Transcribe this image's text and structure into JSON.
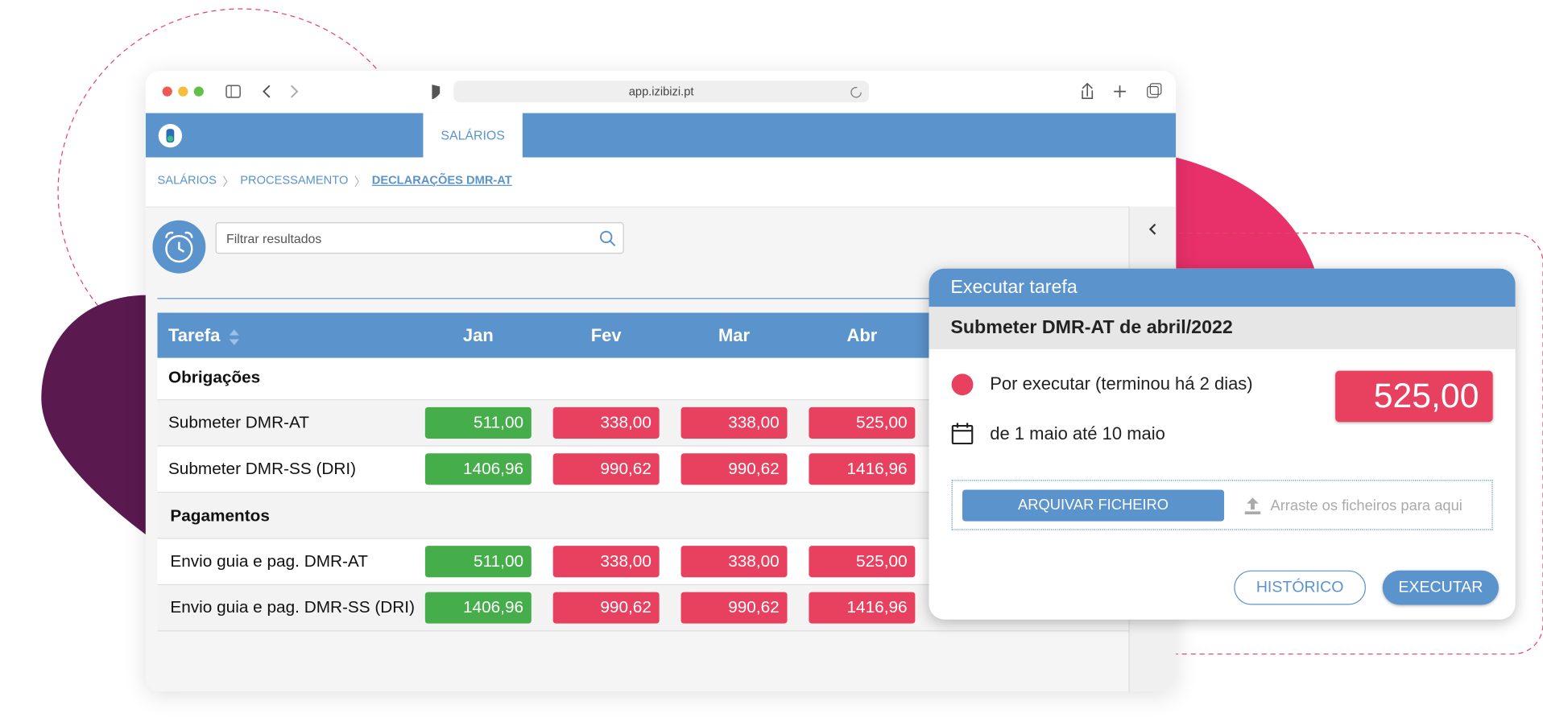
{
  "browser": {
    "url": "app.izibizi.pt"
  },
  "nav": {
    "tab": "SALÁRIOS"
  },
  "breadcrumb": [
    "SALÁRIOS",
    "PROCESSAMENTO",
    "DECLARAÇÕES DMR-AT"
  ],
  "search": {
    "placeholder": "Filtrar resultados"
  },
  "table": {
    "header": [
      "Tarefa",
      "Jan",
      "Fev",
      "Mar",
      "Abr"
    ],
    "groups": [
      {
        "title": "Obrigações",
        "rows": [
          {
            "task": "Submeter DMR-AT",
            "cells": [
              {
                "text": "511,00",
                "color": "#45ad4a"
              },
              {
                "text": "338,00",
                "color": "#e8415f"
              },
              {
                "text": "338,00",
                "color": "#e8415f"
              },
              {
                "text": "525,00",
                "color": "#e8415f"
              }
            ]
          },
          {
            "task": "Submeter DMR-SS (DRI)",
            "cells": [
              {
                "text": "1406,96",
                "color": "#45ad4a"
              },
              {
                "text": "990,62",
                "color": "#e8415f"
              },
              {
                "text": "990,62",
                "color": "#e8415f"
              },
              {
                "text": "1416,96",
                "color": "#e8415f"
              }
            ]
          }
        ]
      },
      {
        "title": "Pagamentos",
        "rows": [
          {
            "task": "Envio guia e pag. DMR-AT",
            "cells": [
              {
                "text": "511,00",
                "color": "#45ad4a"
              },
              {
                "text": "338,00",
                "color": "#e8415f"
              },
              {
                "text": "338,00",
                "color": "#e8415f"
              },
              {
                "text": "525,00",
                "color": "#e8415f"
              }
            ]
          },
          {
            "task": "Envio guia e pag. DMR-SS (DRI)",
            "cells": [
              {
                "text": "1406,96",
                "color": "#45ad4a"
              },
              {
                "text": "990,62",
                "color": "#e8415f"
              },
              {
                "text": "990,62",
                "color": "#e8415f"
              },
              {
                "text": "1416,96",
                "color": "#e8415f"
              }
            ]
          }
        ]
      }
    ]
  },
  "dialog": {
    "title": "Executar tarefa",
    "subtitle": "Submeter DMR-AT de abril/2022",
    "status": "Por executar (terminou há 2 dias)",
    "amount": "525,00",
    "period": "de 1 maio até 10 maio",
    "upload_button": "ARQUIVAR FICHEIRO",
    "drop_hint": "Arraste os ficheiros para aqui",
    "history_button": "HISTÓRICO",
    "execute_button": "EXECUTAR"
  }
}
